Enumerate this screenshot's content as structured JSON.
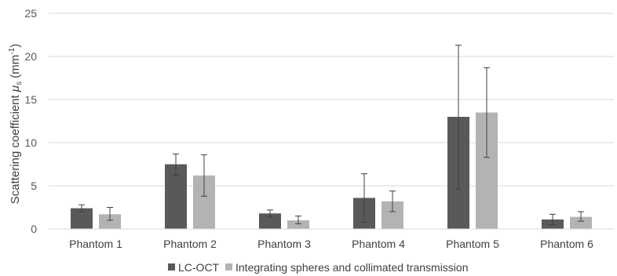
{
  "chart_data": {
    "type": "bar",
    "ylabel_main": "Scattering coefficient ",
    "ylabel_symbol": "μ",
    "ylabel_sub": "s",
    "ylabel_unit_open": " (mm",
    "ylabel_unit_sup": "-1",
    "ylabel_unit_close": ")",
    "ylim": [
      0,
      25
    ],
    "yticks": [
      0,
      5,
      10,
      15,
      20,
      25
    ],
    "grid": true,
    "legend_position": "bottom",
    "categories": [
      "Phantom 1",
      "Phantom 2",
      "Phantom 3",
      "Phantom 4",
      "Phantom 5",
      "Phantom 6"
    ],
    "series": [
      {
        "name": "LC-OCT",
        "color": "#595959",
        "values": [
          2.4,
          7.5,
          1.8,
          3.6,
          13.0,
          1.1
        ],
        "error_low": [
          2.0,
          6.2,
          1.4,
          0.8,
          4.6,
          0.5
        ],
        "error_high": [
          2.8,
          8.7,
          2.2,
          6.4,
          21.3,
          1.7
        ]
      },
      {
        "name": "Integrating spheres and collimated transmission",
        "color": "#b3b3b3",
        "values": [
          1.7,
          6.2,
          1.0,
          3.2,
          13.5,
          1.4
        ],
        "error_low": [
          1.0,
          3.8,
          0.6,
          2.0,
          8.3,
          0.9
        ],
        "error_high": [
          2.5,
          8.6,
          1.5,
          4.4,
          18.7,
          2.0
        ]
      }
    ]
  }
}
